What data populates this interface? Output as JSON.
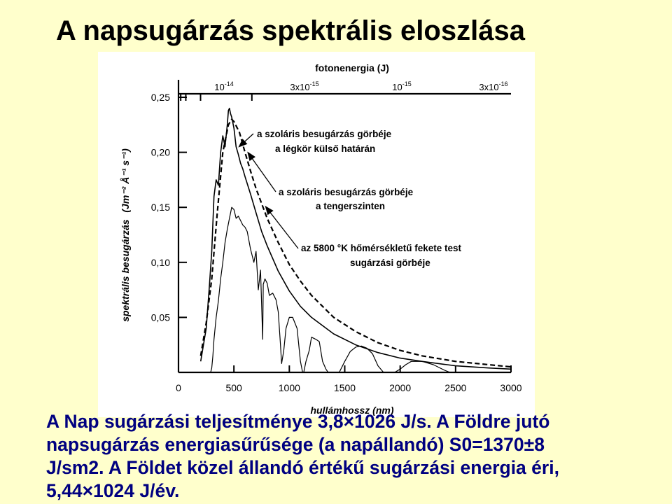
{
  "slide": {
    "title": "A napsugárzás spektrális eloszlása",
    "caption_lines": [
      "A Nap sugárzási teljesítménye 3,8×1026 J/s. A Földre jutó",
      "napsugárzás energiasűrűsége (a napállandó) S0=1370±8",
      "J/sm2. A Földet közel állandó értékű sugárzási energia éri,",
      "5,44×1024 J/év."
    ],
    "colors": {
      "background": "#ffffcc",
      "caption": "#000080",
      "title": "#000000"
    }
  },
  "chart_data": {
    "type": "line",
    "ylabel_main": "spektrális besugárzás",
    "ylabel_unit": "(Jm⁻² Å⁻¹ s⁻¹)",
    "xlabel": "hullámhossz (nm)",
    "top_axis_title": "fotonenergia (J)",
    "xlim": [
      0,
      3000
    ],
    "ylim": [
      0,
      0.25
    ],
    "x_ticks": [
      0,
      500,
      1000,
      1500,
      2000,
      2500,
      3000
    ],
    "x_tick_labels": [
      "0",
      "500",
      "1000",
      "1500",
      "2000",
      "2500",
      "3000"
    ],
    "y_ticks": [
      0.05,
      0.1,
      0.15,
      0.2,
      0.25
    ],
    "y_tick_labels": [
      "0,05",
      "0,10",
      "0,15",
      "0,20",
      "0,25"
    ],
    "top_ticks": [
      {
        "wavelength": 20,
        "base": "10",
        "exp": "-14"
      },
      {
        "wavelength": 66,
        "base": "3x10",
        "exp": "-15"
      },
      {
        "wavelength": 199,
        "base": "10",
        "exp": "-15"
      },
      {
        "wavelength": 662,
        "base": "3x10",
        "exp": "-16"
      }
    ],
    "grid": false,
    "annotations": [
      {
        "lines": [
          "a szoláris besugárzás görbéje",
          "a légkör külső határán"
        ],
        "target_series": "extraterrestrial"
      },
      {
        "lines": [
          "a szoláris besugárzás görbéje",
          "a tengerszinten"
        ],
        "target_series": "sea_level"
      },
      {
        "lines": [
          "az 5800 °K hőmérsékletű fekete test",
          "sugárzási görbéje"
        ],
        "target_series": "blackbody"
      }
    ],
    "series": [
      {
        "id": "extraterrestrial",
        "style": "solid",
        "x": [
          200,
          250,
          280,
          300,
          320,
          340,
          360,
          380,
          400,
          420,
          440,
          450,
          460,
          470,
          480,
          500,
          520,
          540,
          560,
          580,
          600,
          650,
          700,
          750,
          800,
          900,
          1000,
          1100,
          1200,
          1400,
          1600,
          1800,
          2000,
          2200,
          2500,
          2800,
          3000
        ],
        "y": [
          0.01,
          0.04,
          0.08,
          0.11,
          0.16,
          0.175,
          0.17,
          0.2,
          0.215,
          0.205,
          0.225,
          0.238,
          0.24,
          0.235,
          0.232,
          0.222,
          0.205,
          0.198,
          0.19,
          0.185,
          0.178,
          0.162,
          0.145,
          0.128,
          0.115,
          0.092,
          0.074,
          0.06,
          0.05,
          0.035,
          0.025,
          0.018,
          0.013,
          0.01,
          0.006,
          0.004,
          0.003
        ]
      },
      {
        "id": "sea_level",
        "style": "solid",
        "x": [
          290,
          300,
          310,
          320,
          340,
          360,
          380,
          400,
          420,
          440,
          460,
          480,
          500,
          520,
          540,
          560,
          580,
          600,
          620,
          650,
          680,
          700,
          720,
          740,
          760,
          765,
          780,
          800,
          820,
          850,
          880,
          900,
          920,
          930,
          950,
          970,
          1000,
          1030,
          1070,
          1100,
          1120,
          1130,
          1150,
          1180,
          1200,
          1240,
          1270,
          1300,
          1330,
          1350,
          1370,
          1400,
          1450,
          1500,
          1550,
          1600,
          1650,
          1700,
          1750,
          1800,
          1850,
          1900,
          1950,
          2000,
          2050,
          2100,
          2200,
          2300,
          2400,
          2450,
          2500,
          3000
        ],
        "y": [
          0.0,
          0.004,
          0.015,
          0.03,
          0.05,
          0.065,
          0.085,
          0.1,
          0.118,
          0.13,
          0.14,
          0.15,
          0.148,
          0.14,
          0.142,
          0.138,
          0.134,
          0.132,
          0.128,
          0.112,
          0.1,
          0.11,
          0.075,
          0.093,
          0.03,
          0.08,
          0.085,
          0.081,
          0.07,
          0.072,
          0.066,
          0.055,
          0.025,
          0.008,
          0.02,
          0.04,
          0.05,
          0.05,
          0.04,
          0.01,
          0.0,
          0.0,
          0.01,
          0.02,
          0.032,
          0.03,
          0.028,
          0.01,
          0.003,
          0.0,
          0.0,
          0.0,
          0.0,
          0.01,
          0.019,
          0.023,
          0.024,
          0.022,
          0.017,
          0.006,
          0.0,
          0.0,
          0.0,
          0.003,
          0.007,
          0.01,
          0.01,
          0.007,
          0.002,
          0.0,
          0.0,
          0.0
        ]
      },
      {
        "id": "blackbody",
        "style": "dashed",
        "x": [
          200,
          250,
          300,
          350,
          400,
          450,
          480,
          500,
          550,
          600,
          650,
          700,
          800,
          900,
          1000,
          1100,
          1200,
          1400,
          1600,
          1800,
          2000,
          2200,
          2500,
          2800,
          3000
        ],
        "y": [
          0.015,
          0.045,
          0.085,
          0.145,
          0.2,
          0.225,
          0.23,
          0.228,
          0.218,
          0.2,
          0.183,
          0.167,
          0.14,
          0.118,
          0.098,
          0.083,
          0.07,
          0.05,
          0.037,
          0.027,
          0.02,
          0.015,
          0.01,
          0.007,
          0.005
        ]
      }
    ]
  }
}
